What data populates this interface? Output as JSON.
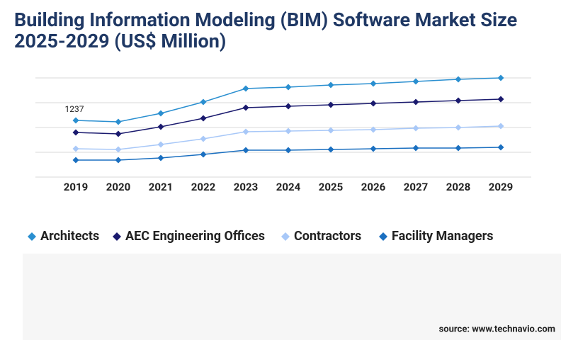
{
  "chart_data": {
    "type": "line",
    "title": "Building Information Modeling (BIM) Software Market Size",
    "subtitle": "2025-2029 (US$ Million)",
    "categories": [
      "2019",
      "2020",
      "2021",
      "2022",
      "2023",
      "2024",
      "2025",
      "2026",
      "2027",
      "2028",
      "2029"
    ],
    "series": [
      {
        "name": "Architects",
        "color": "#2a8fd0",
        "values": [
          1237,
          1206,
          1391,
          1639,
          1933,
          1964,
          2010,
          2041,
          2087,
          2134,
          2165
        ]
      },
      {
        "name": "AEC Engineering Offices",
        "color": "#1a1a6e",
        "values": [
          974,
          943,
          1098,
          1283,
          1515,
          1546,
          1577,
          1608,
          1639,
          1670,
          1701
        ]
      },
      {
        "name": "Contractors",
        "color": "#a8c8f8",
        "values": [
          618,
          603,
          711,
          835,
          989,
          1005,
          1020,
          1036,
          1067,
          1082,
          1113
        ]
      },
      {
        "name": "Facility Managers",
        "color": "#1a6fc0",
        "values": [
          371,
          371,
          417,
          495,
          587,
          587,
          603,
          618,
          634,
          634,
          649
        ]
      }
    ],
    "ylim": [
      0,
      2500
    ],
    "source": "source: www.technavio.com"
  }
}
